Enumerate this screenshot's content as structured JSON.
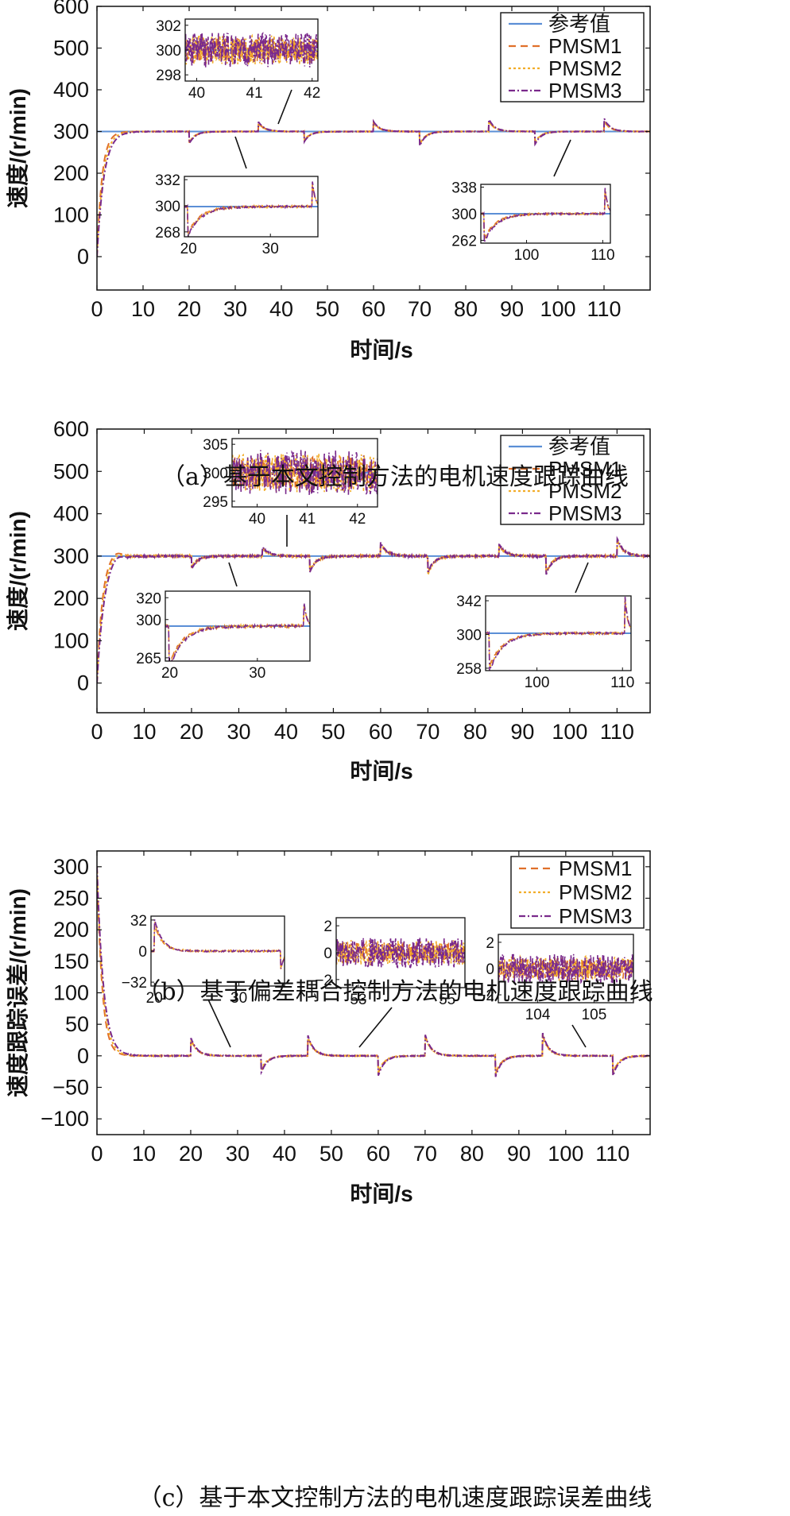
{
  "captions": {
    "a": "（a）基于本文控制方法的电机速度跟踪曲线",
    "b": "（b）基于偏差耦合控制方法的电机速度跟踪曲线",
    "c": "（c）基于本文控制方法的电机速度跟踪误差曲线"
  },
  "colors": {
    "reference": "#5b8fd6",
    "pmsm1": "#e0702a",
    "pmsm2": "#f2ad2a",
    "pmsm3": "#7a2a8c"
  },
  "chart_data": [
    {
      "id": "a",
      "type": "line",
      "xlabel": "时间/s",
      "ylabel": "速度/(r/min)",
      "xlim": [
        0,
        120
      ],
      "ylim": [
        -80,
        600
      ],
      "xticks": [
        0,
        10,
        20,
        30,
        40,
        50,
        60,
        70,
        80,
        90,
        100,
        110
      ],
      "yticks": [
        0,
        100,
        200,
        300,
        400,
        500,
        600
      ],
      "legend": {
        "position": "top-right",
        "entries": [
          "参考值",
          "PMSM1",
          "PMSM2",
          "PMSM3"
        ]
      },
      "series": [
        {
          "name": "参考值",
          "x": [
            0,
            120
          ],
          "y": [
            300,
            300
          ]
        },
        {
          "name": "PMSM1",
          "description": "starts at 0, rises to 300 within ~6 s; disturbances at step times",
          "events": [
            [
              20,
              -28
            ],
            [
              35,
              22
            ],
            [
              45,
              -22
            ],
            [
              60,
              22
            ],
            [
              70,
              -32
            ],
            [
              85,
              26
            ],
            [
              95,
              -28
            ],
            [
              110,
              26
            ]
          ]
        },
        {
          "name": "PMSM2",
          "events": [
            [
              20,
              -26
            ],
            [
              35,
              20
            ],
            [
              45,
              -20
            ],
            [
              60,
              20
            ],
            [
              70,
              -30
            ],
            [
              85,
              24
            ],
            [
              95,
              -26
            ],
            [
              110,
              24
            ]
          ]
        },
        {
          "name": "PMSM3",
          "events": [
            [
              20,
              -30
            ],
            [
              35,
              24
            ],
            [
              45,
              -24
            ],
            [
              60,
              24
            ],
            [
              70,
              -35
            ],
            [
              85,
              30
            ],
            [
              95,
              -32
            ],
            [
              110,
              32
            ]
          ]
        }
      ],
      "insets": [
        {
          "id": "a-i1",
          "xlim": [
            39.8,
            42.1
          ],
          "ylim": [
            297.5,
            302.5
          ],
          "xticks": [
            40,
            41,
            42
          ],
          "yticks": [
            298,
            300,
            302
          ],
          "behavior": "noise",
          "amplitude": 1.4,
          "points_to": [
            41,
            300
          ]
        },
        {
          "id": "a-i2",
          "xlim": [
            19.5,
            35.8
          ],
          "ylim": [
            262,
            336
          ],
          "xticks": [
            20,
            30
          ],
          "yticks": [
            268,
            300,
            332
          ],
          "behavior": "dip-spike",
          "dip": -32,
          "spike": 30,
          "points_to": [
            30,
            300
          ]
        },
        {
          "id": "a-i3",
          "xlim": [
            94,
            111
          ],
          "ylim": [
            258,
            342
          ],
          "xticks": [
            100,
            110
          ],
          "yticks": [
            262,
            300,
            338
          ],
          "behavior": "dip-spike",
          "dip": -36,
          "spike": 34,
          "points_to": [
            104,
            300
          ]
        }
      ]
    },
    {
      "id": "b",
      "type": "line",
      "xlabel": "时间/s",
      "ylabel": "速度/(r/min)",
      "xlim": [
        0,
        117
      ],
      "ylim": [
        -70,
        600
      ],
      "xticks": [
        0,
        10,
        20,
        30,
        40,
        50,
        60,
        70,
        80,
        90,
        100,
        110
      ],
      "yticks": [
        0,
        100,
        200,
        300,
        400,
        500,
        600
      ],
      "legend": {
        "position": "top-right",
        "entries": [
          "参考值",
          "PMSM1",
          "PMSM2",
          "PMSM3"
        ]
      },
      "series": [
        {
          "name": "参考值",
          "x": [
            0,
            117
          ],
          "y": [
            300,
            300
          ]
        },
        {
          "name": "PMSM1",
          "description": "fast rise with overshoot to ~312, larger oscillation than (a)",
          "events": [
            [
              20,
              -28
            ],
            [
              35,
              20
            ],
            [
              45,
              -38
            ],
            [
              60,
              30
            ],
            [
              70,
              -40
            ],
            [
              85,
              28
            ],
            [
              95,
              -42
            ],
            [
              110,
              40
            ]
          ]
        },
        {
          "name": "PMSM2",
          "events": [
            [
              20,
              -26
            ],
            [
              35,
              18
            ],
            [
              45,
              -36
            ],
            [
              60,
              28
            ],
            [
              70,
              -45
            ],
            [
              85,
              26
            ],
            [
              95,
              -40
            ],
            [
              110,
              38
            ]
          ]
        },
        {
          "name": "PMSM3",
          "events": [
            [
              20,
              -30
            ],
            [
              35,
              22
            ],
            [
              45,
              -40
            ],
            [
              60,
              32
            ],
            [
              70,
              -38
            ],
            [
              85,
              30
            ],
            [
              95,
              -44
            ],
            [
              110,
              44
            ]
          ]
        }
      ],
      "insets": [
        {
          "id": "b-i1",
          "xlim": [
            39.5,
            42.4
          ],
          "ylim": [
            294,
            306
          ],
          "xticks": [
            40,
            41,
            42
          ],
          "yticks": [
            295,
            300,
            305
          ],
          "behavior": "noise",
          "amplitude": 4,
          "points_to": [
            41,
            300
          ]
        },
        {
          "id": "b-i2",
          "xlim": [
            19.5,
            36
          ],
          "ylim": [
            262,
            326
          ],
          "xticks": [
            20,
            30
          ],
          "yticks": [
            265,
            300,
            320
          ],
          "behavior": "dip-spike",
          "dip": -35,
          "spike": 20,
          "points_to": [
            30,
            300
          ]
        },
        {
          "id": "b-i3",
          "xlim": [
            94,
            111
          ],
          "ylim": [
            255,
            348
          ],
          "xticks": [
            100,
            110
          ],
          "yticks": [
            258,
            300,
            342
          ],
          "behavior": "dip-spike",
          "dip": -42,
          "spike": 42,
          "points_to": [
            104,
            300
          ]
        }
      ]
    },
    {
      "id": "c",
      "type": "line",
      "xlabel": "时间/s",
      "ylabel": "速度跟踪误差/(r/min)",
      "xlim": [
        0,
        118
      ],
      "ylim": [
        -125,
        325
      ],
      "xticks": [
        0,
        10,
        20,
        30,
        40,
        50,
        60,
        70,
        80,
        90,
        100,
        110
      ],
      "yticks": [
        -100,
        -50,
        0,
        50,
        100,
        150,
        200,
        250,
        300
      ],
      "legend": {
        "position": "top-right",
        "entries": [
          "PMSM1",
          "PMSM2",
          "PMSM3"
        ]
      },
      "series": [
        {
          "name": "PMSM1",
          "description": "starts near 300 and decays to 0 within ~6 s; error spikes at step times",
          "events": [
            [
              20,
              28
            ],
            [
              35,
              -25
            ],
            [
              45,
              30
            ],
            [
              60,
              -28
            ],
            [
              70,
              32
            ],
            [
              85,
              -30
            ],
            [
              95,
              35
            ],
            [
              110,
              -30
            ]
          ]
        },
        {
          "name": "PMSM2",
          "events": [
            [
              20,
              26
            ],
            [
              35,
              -22
            ],
            [
              45,
              28
            ],
            [
              60,
              -26
            ],
            [
              70,
              30
            ],
            [
              85,
              -28
            ],
            [
              95,
              32
            ],
            [
              110,
              -28
            ]
          ]
        },
        {
          "name": "PMSM3",
          "events": [
            [
              20,
              30
            ],
            [
              35,
              -28
            ],
            [
              45,
              32
            ],
            [
              60,
              -32
            ],
            [
              70,
              34
            ],
            [
              85,
              -34
            ],
            [
              95,
              38
            ],
            [
              110,
              -34
            ]
          ]
        }
      ],
      "insets": [
        {
          "id": "c-i1",
          "xlim": [
            19.6,
            35.4
          ],
          "ylim": [
            -36,
            36
          ],
          "xticks": [
            20,
            30
          ],
          "yticks": [
            -32,
            0,
            32
          ],
          "behavior": "error-spike",
          "spike": 32,
          "points_to": [
            29,
            0
          ]
        },
        {
          "id": "c-i2",
          "xlim": [
            52.5,
            55.4
          ],
          "ylim": [
            -2.6,
            2.6
          ],
          "xticks": [
            53,
            55
          ],
          "yticks": [
            -2,
            0,
            2
          ],
          "behavior": "noise",
          "amplitude": 1.1,
          "points_to": [
            55.5,
            0
          ]
        },
        {
          "id": "c-i3",
          "xlim": [
            103.3,
            105.7
          ],
          "ylim": [
            -2.6,
            2.6
          ],
          "xticks": [
            104,
            105
          ],
          "yticks": [
            -2,
            0,
            2
          ],
          "behavior": "noise",
          "amplitude": 1.1,
          "points_to": [
            104.5,
            0
          ]
        }
      ]
    }
  ]
}
